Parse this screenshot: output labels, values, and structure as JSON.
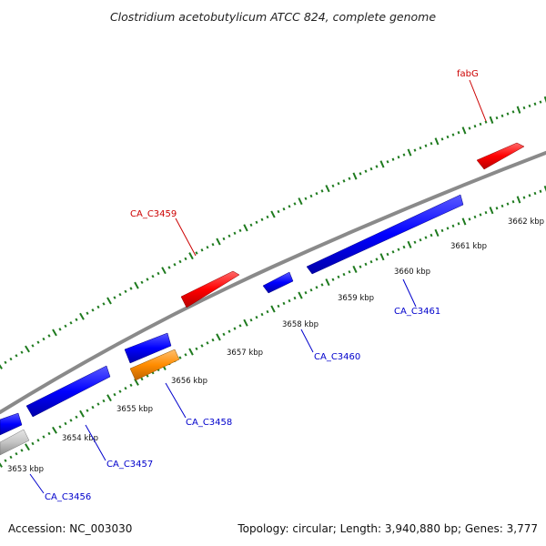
{
  "title": "Clostridium acetobutylicum ATCC 824, complete genome",
  "footer": {
    "accession": "Accession: NC_003030",
    "topology": "Topology: circular; Length: 3,940,880 bp; Genes: 3,777"
  },
  "colors": {
    "backbone": "#888888",
    "tick": "#1e7a1e",
    "gene_forward": "#ff0000",
    "gene_reverse": "#0000ff",
    "gene_other": "#ff8c00",
    "gene_grey": "#bdbdbd",
    "label_forward": "#cc0000",
    "label_reverse": "#0000cc"
  },
  "kbp_ticks": [
    "3653 kbp",
    "3654 kbp",
    "3655 kbp",
    "3656 kbp",
    "3657 kbp",
    "3658 kbp",
    "3659 kbp",
    "3660 kbp",
    "3661 kbp",
    "3662 kbp"
  ],
  "gene_labels": [
    {
      "name": "fabG",
      "strand": "forward"
    },
    {
      "name": "CA_C3459",
      "strand": "forward"
    },
    {
      "name": "CA_C3461",
      "strand": "reverse"
    },
    {
      "name": "CA_C3460",
      "strand": "reverse"
    },
    {
      "name": "CA_C3458",
      "strand": "reverse"
    },
    {
      "name": "CA_C3457",
      "strand": "reverse"
    },
    {
      "name": "CA_C3456",
      "strand": "reverse"
    }
  ]
}
